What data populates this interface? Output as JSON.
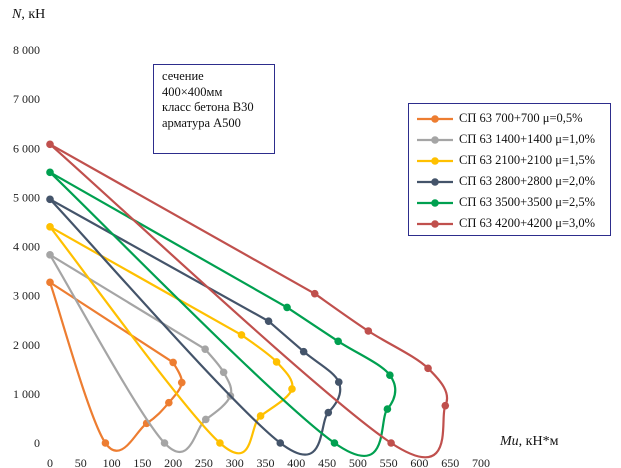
{
  "chart_data": {
    "type": "line",
    "title": "",
    "xlabel": "Mu, кН*м",
    "ylabel": "N, кН",
    "xlim": [
      0,
      700
    ],
    "ylim": [
      0,
      8000
    ],
    "x_ticks": [
      "0",
      "50",
      "100",
      "150",
      "200",
      "250",
      "300",
      "350",
      "400",
      "450",
      "500",
      "550",
      "600",
      "650",
      "700"
    ],
    "y_ticks": [
      "0",
      "1 000",
      "2 000",
      "3 000",
      "4 000",
      "5 000",
      "6 000",
      "7 000",
      "8 000"
    ],
    "grid": false,
    "legend_position": "right",
    "series": [
      {
        "name": "СП 63  700+700  μ=0,5%",
        "color": "#ed7d31",
        "points": [
          [
            0,
            3270
          ],
          [
            90,
            0
          ],
          [
            157,
            400
          ],
          [
            193,
            820
          ],
          [
            214,
            1230
          ],
          [
            200,
            1640
          ],
          [
            0,
            3270
          ]
        ],
        "markers": [
          [
            90,
            0
          ],
          [
            157,
            400
          ],
          [
            193,
            820
          ],
          [
            214,
            1230
          ],
          [
            200,
            1640
          ],
          [
            0,
            3270
          ]
        ]
      },
      {
        "name": "СП 63  1400+1400  μ=1,0%",
        "color": "#a5a5a5",
        "points": [
          [
            0,
            3830
          ],
          [
            186,
            0
          ],
          [
            253,
            480
          ],
          [
            293,
            960
          ],
          [
            282,
            1440
          ],
          [
            252,
            1910
          ],
          [
            0,
            3830
          ]
        ],
        "markers": [
          [
            186,
            0
          ],
          [
            253,
            480
          ],
          [
            293,
            960
          ],
          [
            282,
            1440
          ],
          [
            252,
            1910
          ],
          [
            0,
            3830
          ]
        ]
      },
      {
        "name": "СП 63  2100+2100  μ=1,5%",
        "color": "#ffc000",
        "points": [
          [
            0,
            4400
          ],
          [
            276,
            0
          ],
          [
            342,
            550
          ],
          [
            393,
            1100
          ],
          [
            368,
            1650
          ],
          [
            311,
            2200
          ],
          [
            0,
            4400
          ]
        ],
        "markers": [
          [
            276,
            0
          ],
          [
            342,
            550
          ],
          [
            393,
            1100
          ],
          [
            368,
            1650
          ],
          [
            311,
            2200
          ],
          [
            0,
            4400
          ]
        ]
      },
      {
        "name": "СП 63  2800+2800  μ=2,0%",
        "color": "#44546a",
        "points": [
          [
            0,
            4960
          ],
          [
            374,
            0
          ],
          [
            452,
            620
          ],
          [
            469,
            1240
          ],
          [
            412,
            1860
          ],
          [
            355,
            2480
          ],
          [
            0,
            4960
          ]
        ],
        "markers": [
          [
            374,
            0
          ],
          [
            452,
            620
          ],
          [
            469,
            1240
          ],
          [
            412,
            1860
          ],
          [
            355,
            2480
          ],
          [
            0,
            4960
          ]
        ]
      },
      {
        "name": "СП 63  3500+3500  μ=2,5%",
        "color": "#00a050",
        "points": [
          [
            0,
            5510
          ],
          [
            462,
            0
          ],
          [
            548,
            690
          ],
          [
            552,
            1380
          ],
          [
            468,
            2070
          ],
          [
            385,
            2760
          ],
          [
            0,
            5510
          ]
        ],
        "markers": [
          [
            462,
            0
          ],
          [
            548,
            690
          ],
          [
            552,
            1380
          ],
          [
            468,
            2070
          ],
          [
            385,
            2760
          ],
          [
            0,
            5510
          ]
        ]
      },
      {
        "name": "СП 63  4200+4200  μ=3,0%",
        "color": "#c0504d",
        "points": [
          [
            0,
            6080
          ],
          [
            554,
            0
          ],
          [
            642,
            760
          ],
          [
            614,
            1520
          ],
          [
            517,
            2280
          ],
          [
            430,
            3040
          ],
          [
            0,
            6080
          ]
        ],
        "markers": [
          [
            554,
            0
          ],
          [
            642,
            760
          ],
          [
            614,
            1520
          ],
          [
            517,
            2280
          ],
          [
            430,
            3040
          ],
          [
            0,
            6080
          ]
        ]
      }
    ]
  },
  "note": {
    "line1": "сечение",
    "line2": "400×400мм",
    "line3": "класс бетона В30",
    "line4": "арматура А500"
  }
}
